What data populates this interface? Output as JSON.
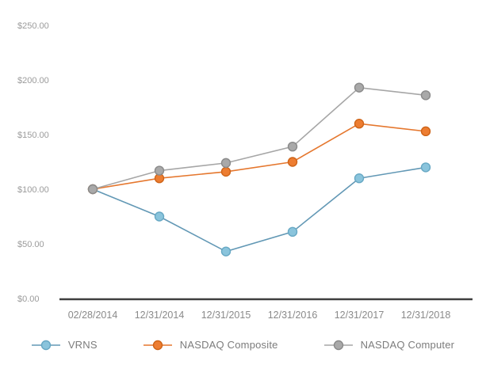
{
  "chart_data": {
    "type": "line",
    "title": "",
    "xlabel": "",
    "ylabel": "",
    "categories": [
      "02/28/2014",
      "12/31/2014",
      "12/31/2015",
      "12/31/2016",
      "12/31/2017",
      "12/31/2018"
    ],
    "series": [
      {
        "name": "VRNS",
        "values": [
          100,
          75,
          43,
          61,
          110,
          120
        ],
        "line_color": "#6298B5",
        "marker_color": "#8AC4DC",
        "marker_stroke": "#67A8C4"
      },
      {
        "name": "NASDAQ Composite",
        "values": [
          100,
          110,
          116,
          125,
          160,
          153
        ],
        "line_color": "#E5772E",
        "marker_color": "#ED7D31",
        "marker_stroke": "#CE6418"
      },
      {
        "name": "NASDAQ Computer",
        "values": [
          100,
          117,
          124,
          139,
          193,
          186
        ],
        "line_color": "#A6A6A6",
        "marker_color": "#A9A9A9",
        "marker_stroke": "#8A8A8A"
      }
    ],
    "ylim": [
      0,
      250
    ],
    "ytick_step": 50,
    "ytick_labels": [
      "$0.00",
      "$50.00",
      "$100.00",
      "$150.00",
      "$200.00",
      "$250.00"
    ],
    "grid": "off",
    "legend_position": "bottom",
    "axis_line_color": "#3f3f3f",
    "y_label_color": "#9b9b9b",
    "x_label_color": "#8a8a8a"
  }
}
